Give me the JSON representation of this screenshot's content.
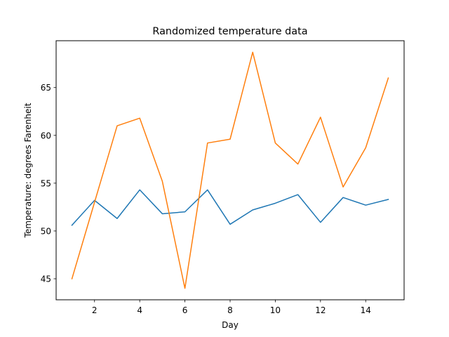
{
  "chart_data": {
    "type": "line",
    "title": "Randomized temperature data",
    "xlabel": "Day",
    "ylabel": "Temperature: degrees Farenheit",
    "x": [
      1,
      2,
      3,
      4,
      5,
      6,
      7,
      8,
      9,
      10,
      11,
      12,
      13,
      14,
      15
    ],
    "xlim": [
      0.3,
      15.7
    ],
    "ylim": [
      42.8,
      69.9
    ],
    "xticks": [
      2,
      4,
      6,
      8,
      10,
      12,
      14
    ],
    "yticks": [
      45,
      50,
      55,
      60,
      65
    ],
    "grid": false,
    "series": [
      {
        "color": "#1f77b4",
        "values": [
          50.6,
          53.2,
          51.3,
          54.3,
          51.8,
          52.0,
          54.3,
          50.7,
          52.2,
          52.9,
          53.8,
          50.9,
          53.5,
          52.7,
          53.3
        ]
      },
      {
        "color": "#ff7f0e",
        "values": [
          45.0,
          53.0,
          61.0,
          61.8,
          55.2,
          44.0,
          59.2,
          59.6,
          68.7,
          59.2,
          57.0,
          61.9,
          54.6,
          58.7,
          66.0
        ]
      }
    ]
  }
}
